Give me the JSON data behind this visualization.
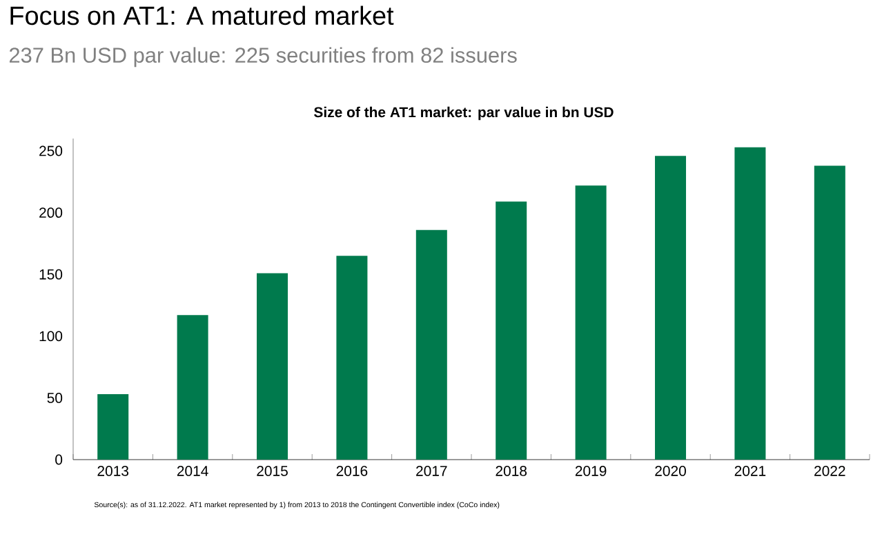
{
  "chart_data": {
    "type": "bar",
    "title": "Focus on AT1: A matured market",
    "subtitle": "237 Bn USD par value: 225 securities from 82 issuers",
    "annotations": [
      "Size of the AT1 market: par value in bn USD",
      "Source(s): as of 31.12.2022. AT1 market represented by 1) from 2013 to 2018  the Contingent Convertible index (CoCo index)"
    ],
    "categories": [
      "2013",
      "2014",
      "2015",
      "2016",
      "2017",
      "2018",
      "2019",
      "2020",
      "2021",
      "2022"
    ],
    "values": [
      53,
      117,
      151,
      165,
      186,
      209,
      222,
      246,
      253,
      238
    ],
    "color": "#007a4d",
    "ylim": [
      0,
      260
    ],
    "yticks": [
      0,
      50,
      100,
      150,
      200,
      250
    ]
  }
}
